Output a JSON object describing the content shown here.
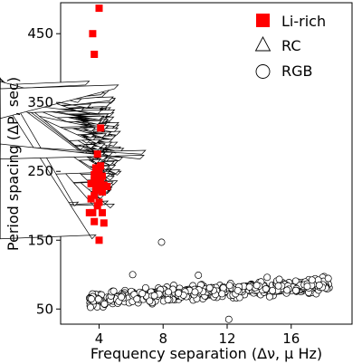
{
  "chart_data": {
    "type": "scatter",
    "xlabel": "Frequency separation (Δν, μ Hz)",
    "ylabel": "Period spacing (ΔP, sec)",
    "xlim": [
      1.6,
      19.8
    ],
    "ylim": [
      28,
      495
    ],
    "xticks": [
      4,
      8,
      12,
      16
    ],
    "yticks": [
      50,
      150,
      250,
      350,
      450
    ],
    "grid": false,
    "legend_position": "top-right",
    "series": [
      {
        "name": "Li-rich",
        "marker": "square",
        "color": "#ff0000",
        "points": [
          [
            4.0,
            487
          ],
          [
            3.6,
            450
          ],
          [
            3.7,
            420
          ],
          [
            4.1,
            313
          ],
          [
            3.9,
            275
          ],
          [
            4.1,
            258
          ],
          [
            3.8,
            255
          ],
          [
            3.9,
            250
          ],
          [
            4.0,
            248
          ],
          [
            3.7,
            245
          ],
          [
            4.2,
            243
          ],
          [
            3.9,
            240
          ],
          [
            3.7,
            236
          ],
          [
            4.1,
            235
          ],
          [
            3.5,
            232
          ],
          [
            4.3,
            230
          ],
          [
            3.9,
            228
          ],
          [
            4.5,
            228
          ],
          [
            3.8,
            225
          ],
          [
            4.0,
            222
          ],
          [
            4.2,
            220
          ],
          [
            3.7,
            215
          ],
          [
            3.5,
            210
          ],
          [
            4.0,
            205
          ],
          [
            3.9,
            200
          ],
          [
            3.6,
            190
          ],
          [
            4.2,
            190
          ],
          [
            3.4,
            190
          ],
          [
            3.7,
            177
          ],
          [
            4.3,
            175
          ],
          [
            4.0,
            150
          ]
        ]
      },
      {
        "name": "RC",
        "marker": "triangle",
        "color": "#000000"
      },
      {
        "name": "RGB",
        "marker": "circle",
        "color": "#000000"
      }
    ]
  }
}
